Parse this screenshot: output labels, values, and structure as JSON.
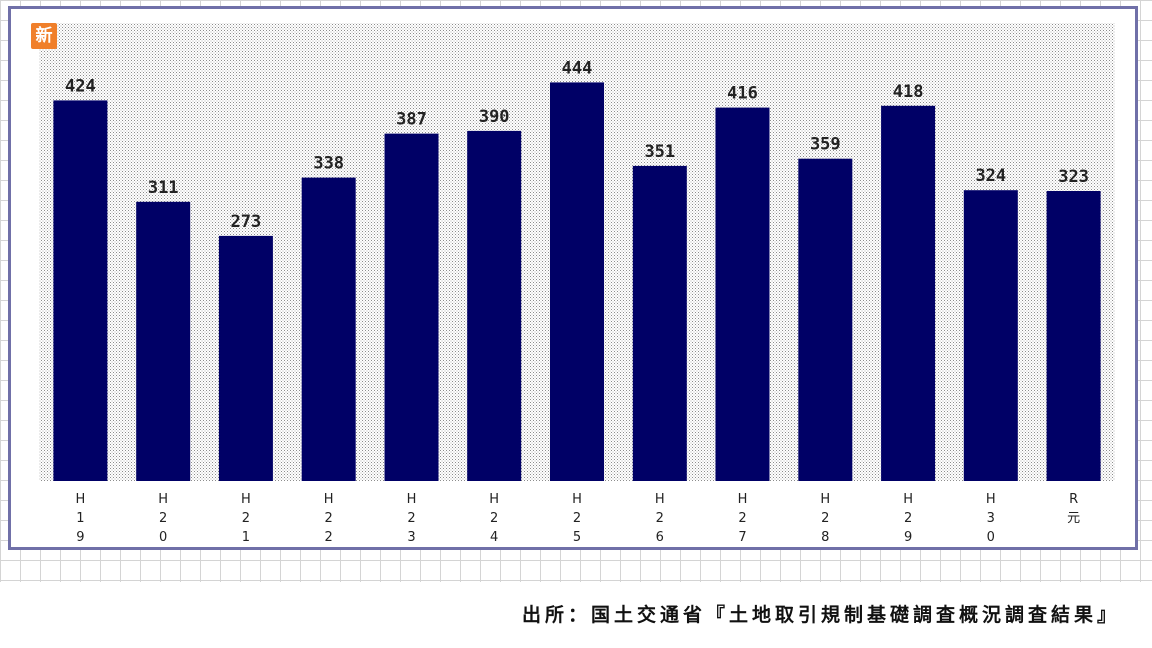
{
  "badge": "新",
  "source": "出所：国土交通省『土地取引規制基礎調査概況調査結果』",
  "colors": {
    "bar": "#000066",
    "frame": "#7070a8",
    "badge": "#f07f2a"
  },
  "chart_data": {
    "type": "bar",
    "categories": [
      [
        "H",
        "1",
        "9"
      ],
      [
        "H",
        "2",
        "0"
      ],
      [
        "H",
        "2",
        "1"
      ],
      [
        "H",
        "2",
        "2"
      ],
      [
        "H",
        "2",
        "3"
      ],
      [
        "H",
        "2",
        "4"
      ],
      [
        "H",
        "2",
        "5"
      ],
      [
        "H",
        "2",
        "6"
      ],
      [
        "H",
        "2",
        "7"
      ],
      [
        "H",
        "2",
        "8"
      ],
      [
        "H",
        "2",
        "9"
      ],
      [
        "H",
        "3",
        "0"
      ],
      [
        "R",
        "元"
      ]
    ],
    "values": [
      424,
      311,
      273,
      338,
      387,
      390,
      444,
      351,
      416,
      359,
      418,
      324,
      323
    ],
    "data_labels": [
      "424",
      "311",
      "273",
      "338",
      "387",
      "390",
      "444",
      "351",
      "416",
      "359",
      "418",
      "324",
      "323"
    ],
    "ylim": [
      0,
      500
    ],
    "grid": false,
    "legend": "none"
  }
}
